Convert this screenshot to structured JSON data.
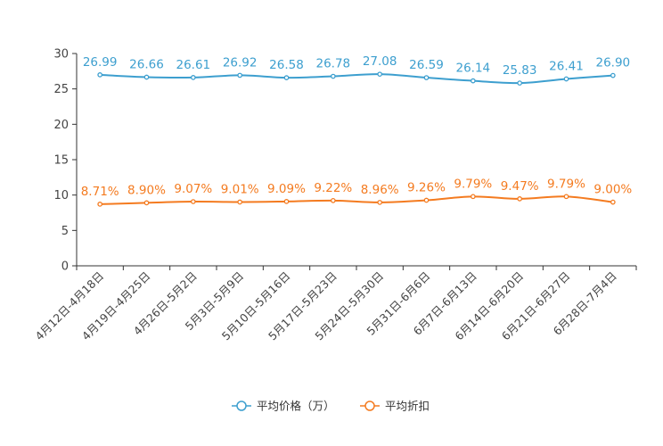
{
  "chart_data": {
    "type": "line",
    "title": "",
    "xlabel": "",
    "ylabel": "",
    "ylim": [
      0,
      30
    ],
    "yticks": [
      0,
      5,
      10,
      15,
      20,
      25,
      30
    ],
    "grid": false,
    "legend_position": "bottom-center",
    "categories": [
      "4月12日-4月18日",
      "4月19日-4月25日",
      "4月26日-5月2日",
      "5月3日-5月9日",
      "5月10日-5月16日",
      "5月17日-5月23日",
      "5月24日-5月30日",
      "5月31日-6月6日",
      "6月7日-6月13日",
      "6月14日-6月20日",
      "6月21日-6月27日",
      "6月28日-7月4日"
    ],
    "series": [
      {
        "name": "平均价格（万）",
        "color": "#3d9fcf",
        "values": [
          26.99,
          26.66,
          26.61,
          26.92,
          26.58,
          26.78,
          27.08,
          26.59,
          26.14,
          25.83,
          26.41,
          26.9
        ],
        "labels": [
          "26.99",
          "26.66",
          "26.61",
          "26.92",
          "26.58",
          "26.78",
          "27.08",
          "26.59",
          "26.14",
          "25.83",
          "26.41",
          "26.90"
        ]
      },
      {
        "name": "平均折扣",
        "color": "#f47b20",
        "values": [
          8.71,
          8.9,
          9.07,
          9.01,
          9.09,
          9.22,
          8.96,
          9.26,
          9.79,
          9.47,
          9.79,
          9.0
        ],
        "labels": [
          "8.71%",
          "8.90%",
          "9.07%",
          "9.01%",
          "9.09%",
          "9.22%",
          "8.96%",
          "9.26%",
          "9.79%",
          "9.47%",
          "9.79%",
          "9.00%"
        ]
      }
    ]
  }
}
